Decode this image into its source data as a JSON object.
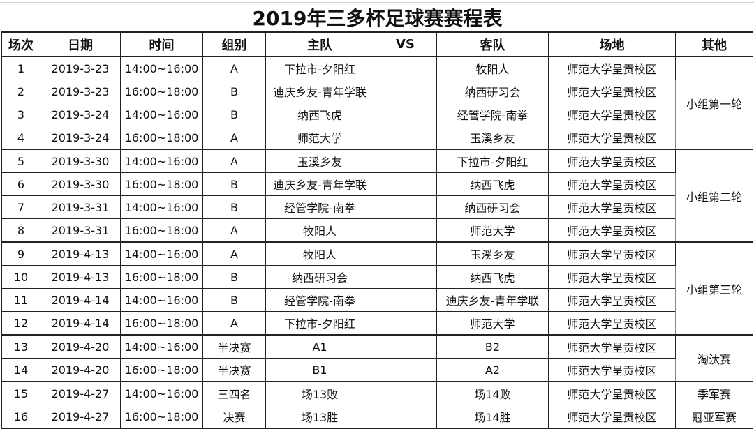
{
  "title": "2019年三多杯足球赛赛程表",
  "headers": [
    "场次",
    "日期",
    "时间",
    "组别",
    "主队",
    "VS",
    "客队",
    "场地",
    "其他"
  ],
  "rows": [
    [
      "1",
      "2019-3-23",
      "14:00~16:00",
      "A",
      "下拉市-夕阳红",
      "",
      "牧阳人",
      "师范大学呈贡校区"
    ],
    [
      "2",
      "2019-3-23",
      "16:00~18:00",
      "B",
      "迪庆乡友-青年学联",
      "",
      "纳西研习会",
      "师范大学呈贡校区"
    ],
    [
      "3",
      "2019-3-24",
      "14:00~16:00",
      "B",
      "纳西飞虎",
      "",
      "经管学院-南拳",
      "师范大学呈贡校区"
    ],
    [
      "4",
      "2019-3-24",
      "16:00~18:00",
      "A",
      "师范大学",
      "",
      "玉溪乡友",
      "师范大学呈贡校区"
    ],
    [
      "5",
      "2019-3-30",
      "14:00~16:00",
      "A",
      "玉溪乡友",
      "",
      "下拉市-夕阳红",
      "师范大学呈贡校区"
    ],
    [
      "6",
      "2019-3-30",
      "16:00~18:00",
      "B",
      "迪庆乡友-青年学联",
      "",
      "纳西飞虎",
      "师范大学呈贡校区"
    ],
    [
      "7",
      "2019-3-31",
      "14:00~16:00",
      "B",
      "经管学院-南拳",
      "",
      "纳西研习会",
      "师范大学呈贡校区"
    ],
    [
      "8",
      "2019-3-31",
      "16:00~18:00",
      "A",
      "牧阳人",
      "",
      "师范大学",
      "师范大学呈贡校区"
    ],
    [
      "9",
      "2019-4-13",
      "14:00~16:00",
      "A",
      "牧阳人",
      "",
      "玉溪乡友",
      "师范大学呈贡校区"
    ],
    [
      "10",
      "2019-4-13",
      "16:00~18:00",
      "B",
      "纳西研习会",
      "",
      "纳西飞虎",
      "师范大学呈贡校区"
    ],
    [
      "11",
      "2019-4-14",
      "14:00~16:00",
      "B",
      "经管学院-南拳",
      "",
      "迪庆乡友-青年学联",
      "师范大学呈贡校区"
    ],
    [
      "12",
      "2019-4-14",
      "16:00~18:00",
      "A",
      "下拉市-夕阳红",
      "",
      "师范大学",
      "师范大学呈贡校区"
    ],
    [
      "13",
      "2019-4-20",
      "14:00~16:00",
      "半决赛",
      "A1",
      "",
      "B2",
      "师范大学呈贡校区"
    ],
    [
      "14",
      "2019-4-20",
      "16:00~18:00",
      "半决赛",
      "B1",
      "",
      "A2",
      "师范大学呈贡校区"
    ],
    [
      "15",
      "2019-4-27",
      "14:00~16:00",
      "三四名",
      "场13败",
      "",
      "场14败",
      "师范大学呈贡校区"
    ],
    [
      "16",
      "2019-4-27",
      "16:00~18:00",
      "决赛",
      "场13胜",
      "",
      "场14胜",
      "师范大学呈贡校区"
    ]
  ],
  "other_groups": [
    {
      "label": "小组第一轮",
      "span": 4
    },
    {
      "label": "小组第二轮",
      "span": 4
    },
    {
      "label": "小组第三轮",
      "span": 4
    },
    {
      "label": "淘汰赛",
      "span": 2
    },
    {
      "label": "季军赛",
      "span": 1
    },
    {
      "label": "冠亚军赛",
      "span": 1
    }
  ]
}
